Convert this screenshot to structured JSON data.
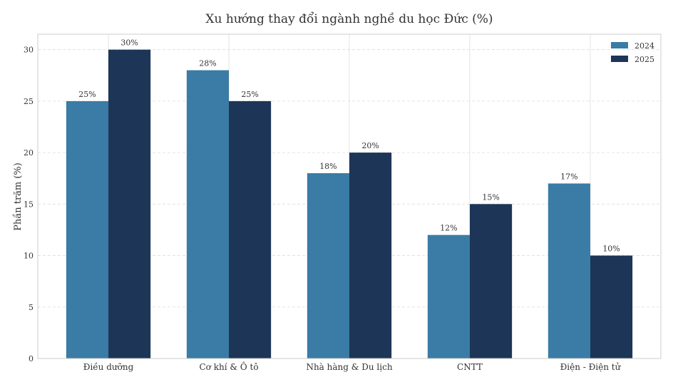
{
  "chart_data": {
    "type": "bar",
    "title": "Xu hướng thay đổi ngành nghề du học Đức (%)",
    "xlabel": "",
    "ylabel": "Phần trăm (%)",
    "ylim": [
      0,
      31.5
    ],
    "yticks": [
      0,
      5,
      10,
      15,
      20,
      25,
      30
    ],
    "grid": true,
    "legend_position": "top-right",
    "categories": [
      "Điều dưỡng",
      "Cơ khí & Ô tô",
      "Nhà hàng & Du lịch",
      "CNTT",
      "Điện - Điện tử"
    ],
    "series": [
      {
        "name": "2024",
        "color": "#3a7ca5",
        "values": [
          25,
          28,
          18,
          12,
          17
        ],
        "labels": [
          "25%",
          "28%",
          "18%",
          "12%",
          "17%"
        ]
      },
      {
        "name": "2025",
        "color": "#1d3557",
        "values": [
          30,
          25,
          20,
          15,
          10
        ],
        "labels": [
          "30%",
          "25%",
          "20%",
          "15%",
          "10%"
        ]
      }
    ]
  }
}
